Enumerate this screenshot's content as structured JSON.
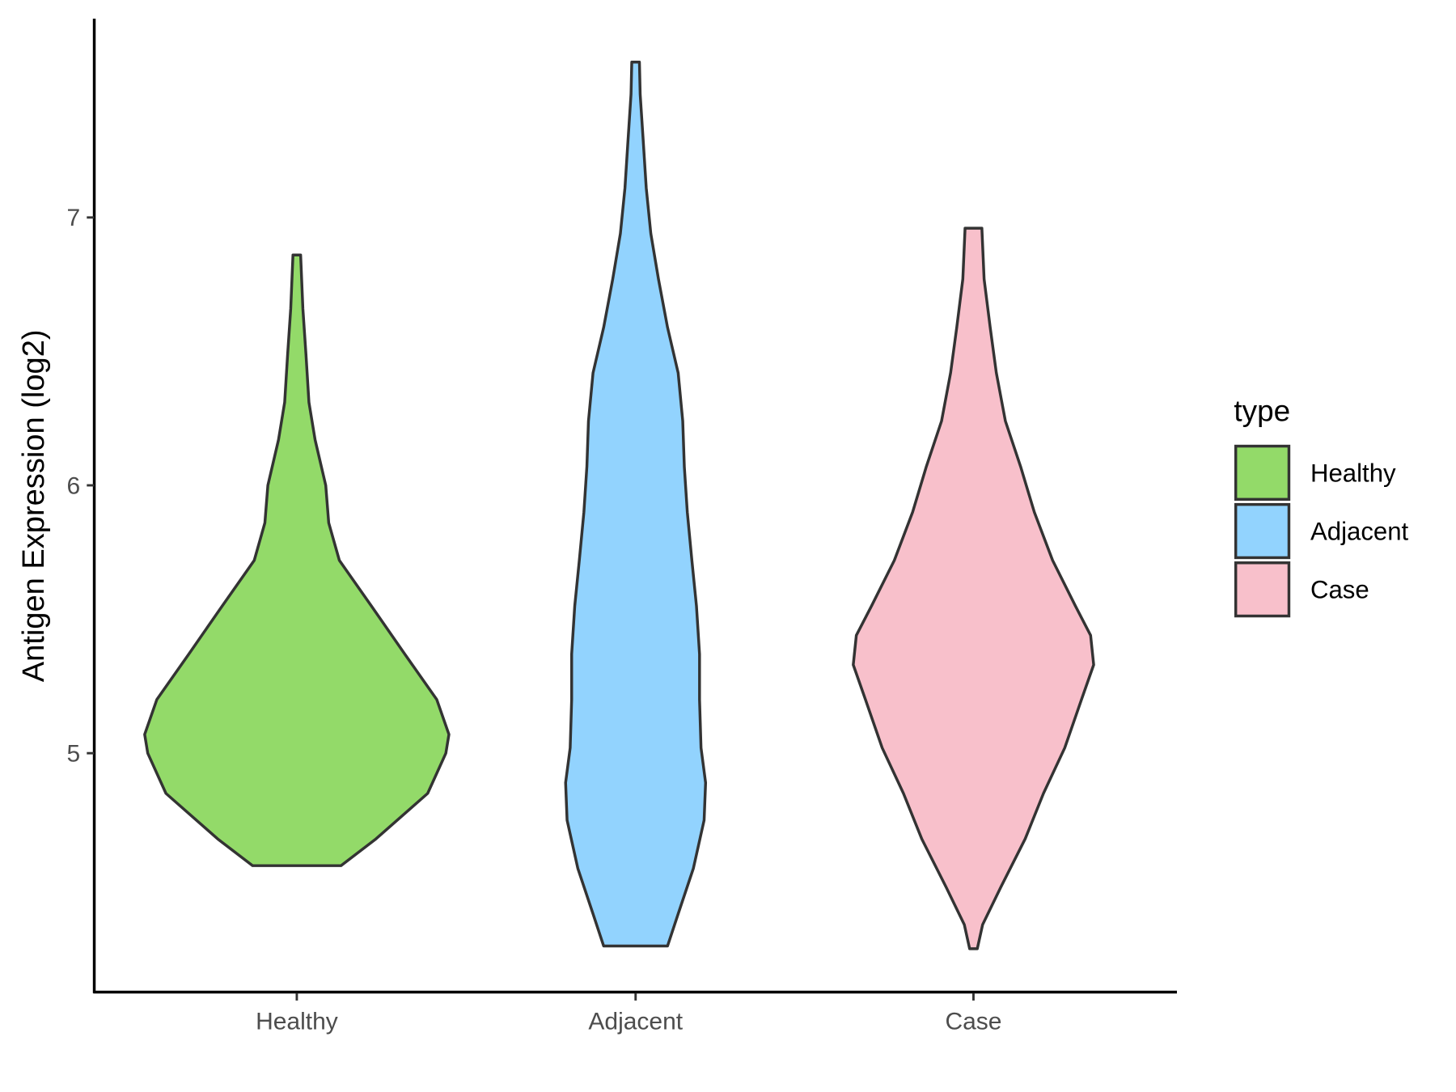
{
  "chart_data": {
    "type": "violin",
    "title": "",
    "xlabel": "",
    "ylabel": "Antigen Expression (log2)",
    "ylim": [
      4.108,
      7.74
    ],
    "yticks": [
      5,
      6,
      7
    ],
    "ytick_labels": [
      "5",
      "6",
      "7"
    ],
    "categories": [
      "Healthy",
      "Adjacent",
      "Case"
    ],
    "legend": {
      "title": "type",
      "position": "right",
      "entries": [
        "Healthy",
        "Adjacent",
        "Case"
      ]
    },
    "grid": false,
    "series": [
      {
        "name": "Healthy",
        "color": "#93DA69",
        "min": 4.58,
        "max": 6.86,
        "density_profile": [
          [
            4.58,
            0.29
          ],
          [
            4.68,
            0.52
          ],
          [
            4.85,
            0.86
          ],
          [
            5.0,
            0.98
          ],
          [
            5.07,
            1.0
          ],
          [
            5.2,
            0.92
          ],
          [
            5.37,
            0.71
          ],
          [
            5.55,
            0.49
          ],
          [
            5.72,
            0.28
          ],
          [
            5.86,
            0.21
          ],
          [
            6.0,
            0.19
          ],
          [
            6.17,
            0.12
          ],
          [
            6.31,
            0.08
          ],
          [
            6.49,
            0.06
          ],
          [
            6.66,
            0.04
          ],
          [
            6.86,
            0.025
          ]
        ]
      },
      {
        "name": "Adjacent",
        "color": "#92D3FE",
        "min": 4.28,
        "max": 7.58,
        "density_profile": [
          [
            4.28,
            0.21
          ],
          [
            4.4,
            0.28
          ],
          [
            4.57,
            0.38
          ],
          [
            4.75,
            0.45
          ],
          [
            4.89,
            0.46
          ],
          [
            5.02,
            0.43
          ],
          [
            5.2,
            0.42
          ],
          [
            5.37,
            0.42
          ],
          [
            5.55,
            0.4
          ],
          [
            5.72,
            0.37
          ],
          [
            5.9,
            0.34
          ],
          [
            6.07,
            0.32
          ],
          [
            6.24,
            0.31
          ],
          [
            6.42,
            0.28
          ],
          [
            6.59,
            0.21
          ],
          [
            6.77,
            0.15
          ],
          [
            6.94,
            0.1
          ],
          [
            7.11,
            0.07
          ],
          [
            7.29,
            0.05
          ],
          [
            7.46,
            0.03
          ],
          [
            7.58,
            0.025
          ]
        ]
      },
      {
        "name": "Case",
        "color": "#F8C0CB",
        "min": 4.27,
        "max": 6.96,
        "density_profile": [
          [
            4.27,
            0.025
          ],
          [
            4.36,
            0.06
          ],
          [
            4.5,
            0.18
          ],
          [
            4.68,
            0.34
          ],
          [
            4.85,
            0.46
          ],
          [
            5.02,
            0.6
          ],
          [
            5.2,
            0.71
          ],
          [
            5.33,
            0.79
          ],
          [
            5.44,
            0.77
          ],
          [
            5.55,
            0.67
          ],
          [
            5.72,
            0.52
          ],
          [
            5.9,
            0.4
          ],
          [
            6.07,
            0.31
          ],
          [
            6.24,
            0.21
          ],
          [
            6.42,
            0.15
          ],
          [
            6.59,
            0.11
          ],
          [
            6.77,
            0.07
          ],
          [
            6.96,
            0.055
          ]
        ]
      }
    ]
  }
}
